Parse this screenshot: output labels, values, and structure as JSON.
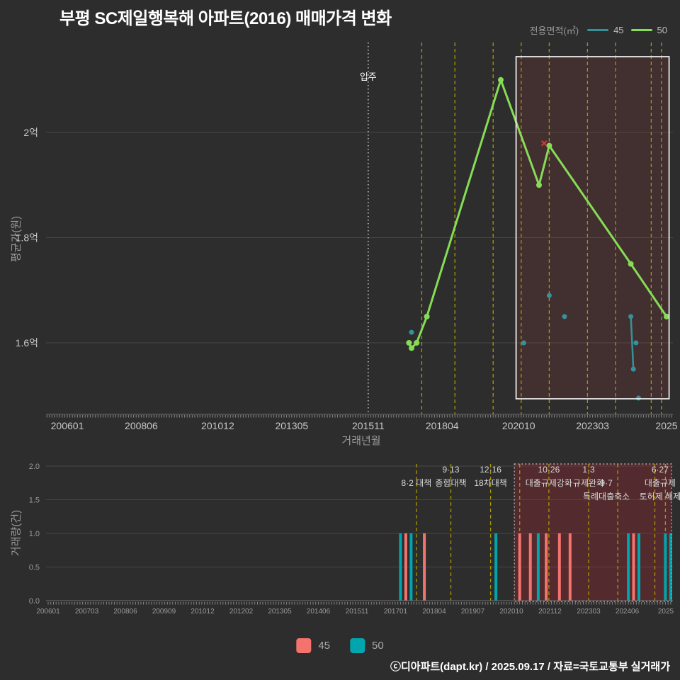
{
  "page": {
    "title": "부평 SC제일행복해 아파트(2016) 매매가격 변화",
    "footer": "ⓒ디아파트(dapt.kr) / 2025.09.17 / 자료=국토교통부 실거래가"
  },
  "colors": {
    "background": "#2d2d2d",
    "grid": "#464646",
    "axis_text": "#c8c8c8",
    "muted_text": "#9a9a9a",
    "series_45_line": "#35929b",
    "series_50_line": "#86dd55",
    "series_45_bar": "#f4736c",
    "series_50_bar": "#00a5ad",
    "policy_line": "#ab9600",
    "move_in_line": "#dddddd",
    "cancel_marker": "#e83a34",
    "highlight_fill_price": "rgba(205,62,72,0.13)",
    "highlight_fill_volume": "rgba(200,40,50,0.25)",
    "highlight_border_price": "#ececec",
    "highlight_border_volume": "#a8a8a8"
  },
  "legend_top": {
    "title": "전용면적(㎡)",
    "items": [
      {
        "label": "45"
      },
      {
        "label": "50"
      }
    ]
  },
  "legend_bottom": {
    "items": [
      {
        "label": "45"
      },
      {
        "label": "50"
      }
    ]
  },
  "chart_data": [
    {
      "type": "line",
      "title": "매매가격 변화",
      "xlabel": "거래년월",
      "ylabel": "평균가(원)",
      "x_format": "yyyymm",
      "y_unit": "억원",
      "ylim": [
        1.46,
        2.17
      ],
      "grid": true,
      "yticks": [
        {
          "value": 2.0,
          "label": "2억"
        },
        {
          "value": 1.8,
          "label": "1.8억"
        },
        {
          "value": 1.6,
          "label": "1.6억"
        }
      ],
      "xticks": [
        {
          "label": "200601",
          "month": "200601"
        },
        {
          "label": "200806",
          "month": "200806"
        },
        {
          "label": "201012",
          "month": "201012"
        },
        {
          "label": "201305",
          "month": "201305"
        },
        {
          "label": "201511",
          "month": "201511"
        },
        {
          "label": "201804",
          "month": "201804"
        },
        {
          "label": "202010",
          "month": "202010"
        },
        {
          "label": "202303",
          "month": "202303"
        },
        {
          "label": "2025",
          "month": "202508"
        }
      ],
      "series": [
        {
          "name": "45",
          "color": "#35929b",
          "segments": [
            [
              [
                "201704",
                1.62
              ]
            ],
            [
              [
                "202012",
                1.6
              ]
            ],
            [
              [
                "202110",
                1.69
              ]
            ],
            [
              [
                "202204",
                1.65
              ]
            ],
            [
              [
                "202406",
                1.65
              ],
              [
                "202407",
                1.55
              ]
            ],
            [
              [
                "202408",
                1.6
              ]
            ],
            [
              [
                "202409",
                1.495
              ]
            ]
          ]
        },
        {
          "name": "50",
          "color": "#86dd55",
          "segments": [
            [
              [
                "201703",
                1.6
              ],
              [
                "201704",
                1.59
              ],
              [
                "201706",
                1.6
              ],
              [
                "201710",
                1.65
              ],
              [
                "202003",
                2.1
              ],
              [
                "202106",
                1.9
              ],
              [
                "202110",
                1.975
              ],
              [
                "202406",
                1.75
              ],
              [
                "202508",
                1.65
              ]
            ]
          ]
        }
      ],
      "cancelled_point": {
        "series": "50",
        "month": "202108",
        "value": 1.98,
        "symbol": "✕"
      },
      "move_in_line": {
        "month": "201511",
        "label": "입주"
      },
      "policy_line_months": [
        "201708",
        "201809",
        "201912",
        "202011",
        "202110",
        "202301",
        "202312",
        "202502",
        "202506"
      ],
      "highlight_region": {
        "from": "202009",
        "to": "202509"
      }
    },
    {
      "type": "bar",
      "xlabel": "",
      "ylabel": "거래량(건)",
      "ylim": [
        0,
        2
      ],
      "grid": true,
      "yticks": [
        0,
        0.5,
        1,
        1.5,
        2
      ],
      "xticks": [
        "200601",
        "200703",
        "200806",
        "200909",
        "201012",
        "201202",
        "201305",
        "201406",
        "201511",
        "201701",
        "201804",
        "201907",
        "202010",
        "202112",
        "202303",
        "202406",
        "2025"
      ],
      "series": [
        {
          "name": "45",
          "color": "#f4736c",
          "months": [
            "201704",
            "201711",
            "202011",
            "202103",
            "202109",
            "202202",
            "202206",
            "202406"
          ],
          "counts": [
            1,
            1,
            1,
            1,
            1,
            1,
            1,
            1
          ]
        },
        {
          "name": "50",
          "color": "#00a5ad",
          "months": [
            "201702",
            "201706",
            "202002",
            "202106",
            "202404",
            "202408",
            "202506",
            "202508"
          ],
          "counts": [
            1,
            1,
            1,
            1,
            1,
            1,
            1,
            1
          ]
        }
      ],
      "policy_line_months": [
        "201708",
        "201809",
        "201912",
        "202011",
        "202110",
        "202301",
        "202312",
        "202502",
        "202506"
      ],
      "annotations": [
        {
          "month": "201708",
          "dx": 0,
          "lines": [
            {
              "row": 1,
              "text": "8·2 대책"
            }
          ]
        },
        {
          "month": "201809",
          "dx": 0,
          "lines": [
            {
              "row": 0,
              "text": "9·13"
            },
            {
              "row": 1,
              "text": "종합대책"
            }
          ]
        },
        {
          "month": "201912",
          "dx": 0,
          "lines": [
            {
              "row": 0,
              "text": "12·16"
            },
            {
              "row": 1,
              "text": "18차대책"
            }
          ]
        },
        {
          "month": "202110",
          "dx": 0,
          "lines": [
            {
              "row": 0,
              "text": "10·26"
            },
            {
              "row": 1,
              "text": "대출규제강화"
            }
          ]
        },
        {
          "month": "202301",
          "dx": 0,
          "lines": [
            {
              "row": 0,
              "text": "1·3"
            },
            {
              "row": 1,
              "text": "규제완화"
            }
          ]
        },
        {
          "month": "202312",
          "dx": -16,
          "lines": [
            {
              "row": 1,
              "text": "9·7"
            },
            {
              "row": 2,
              "text": "특례대출축소"
            }
          ]
        },
        {
          "month": "202504",
          "dx": 0,
          "lines": [
            {
              "row": 0,
              "text": "6·27"
            },
            {
              "row": 1,
              "text": "대출규제"
            },
            {
              "row": 2,
              "text": "토허제 해제"
            }
          ]
        }
      ],
      "highlight_region": {
        "from": "202009",
        "to": "202509"
      }
    }
  ]
}
